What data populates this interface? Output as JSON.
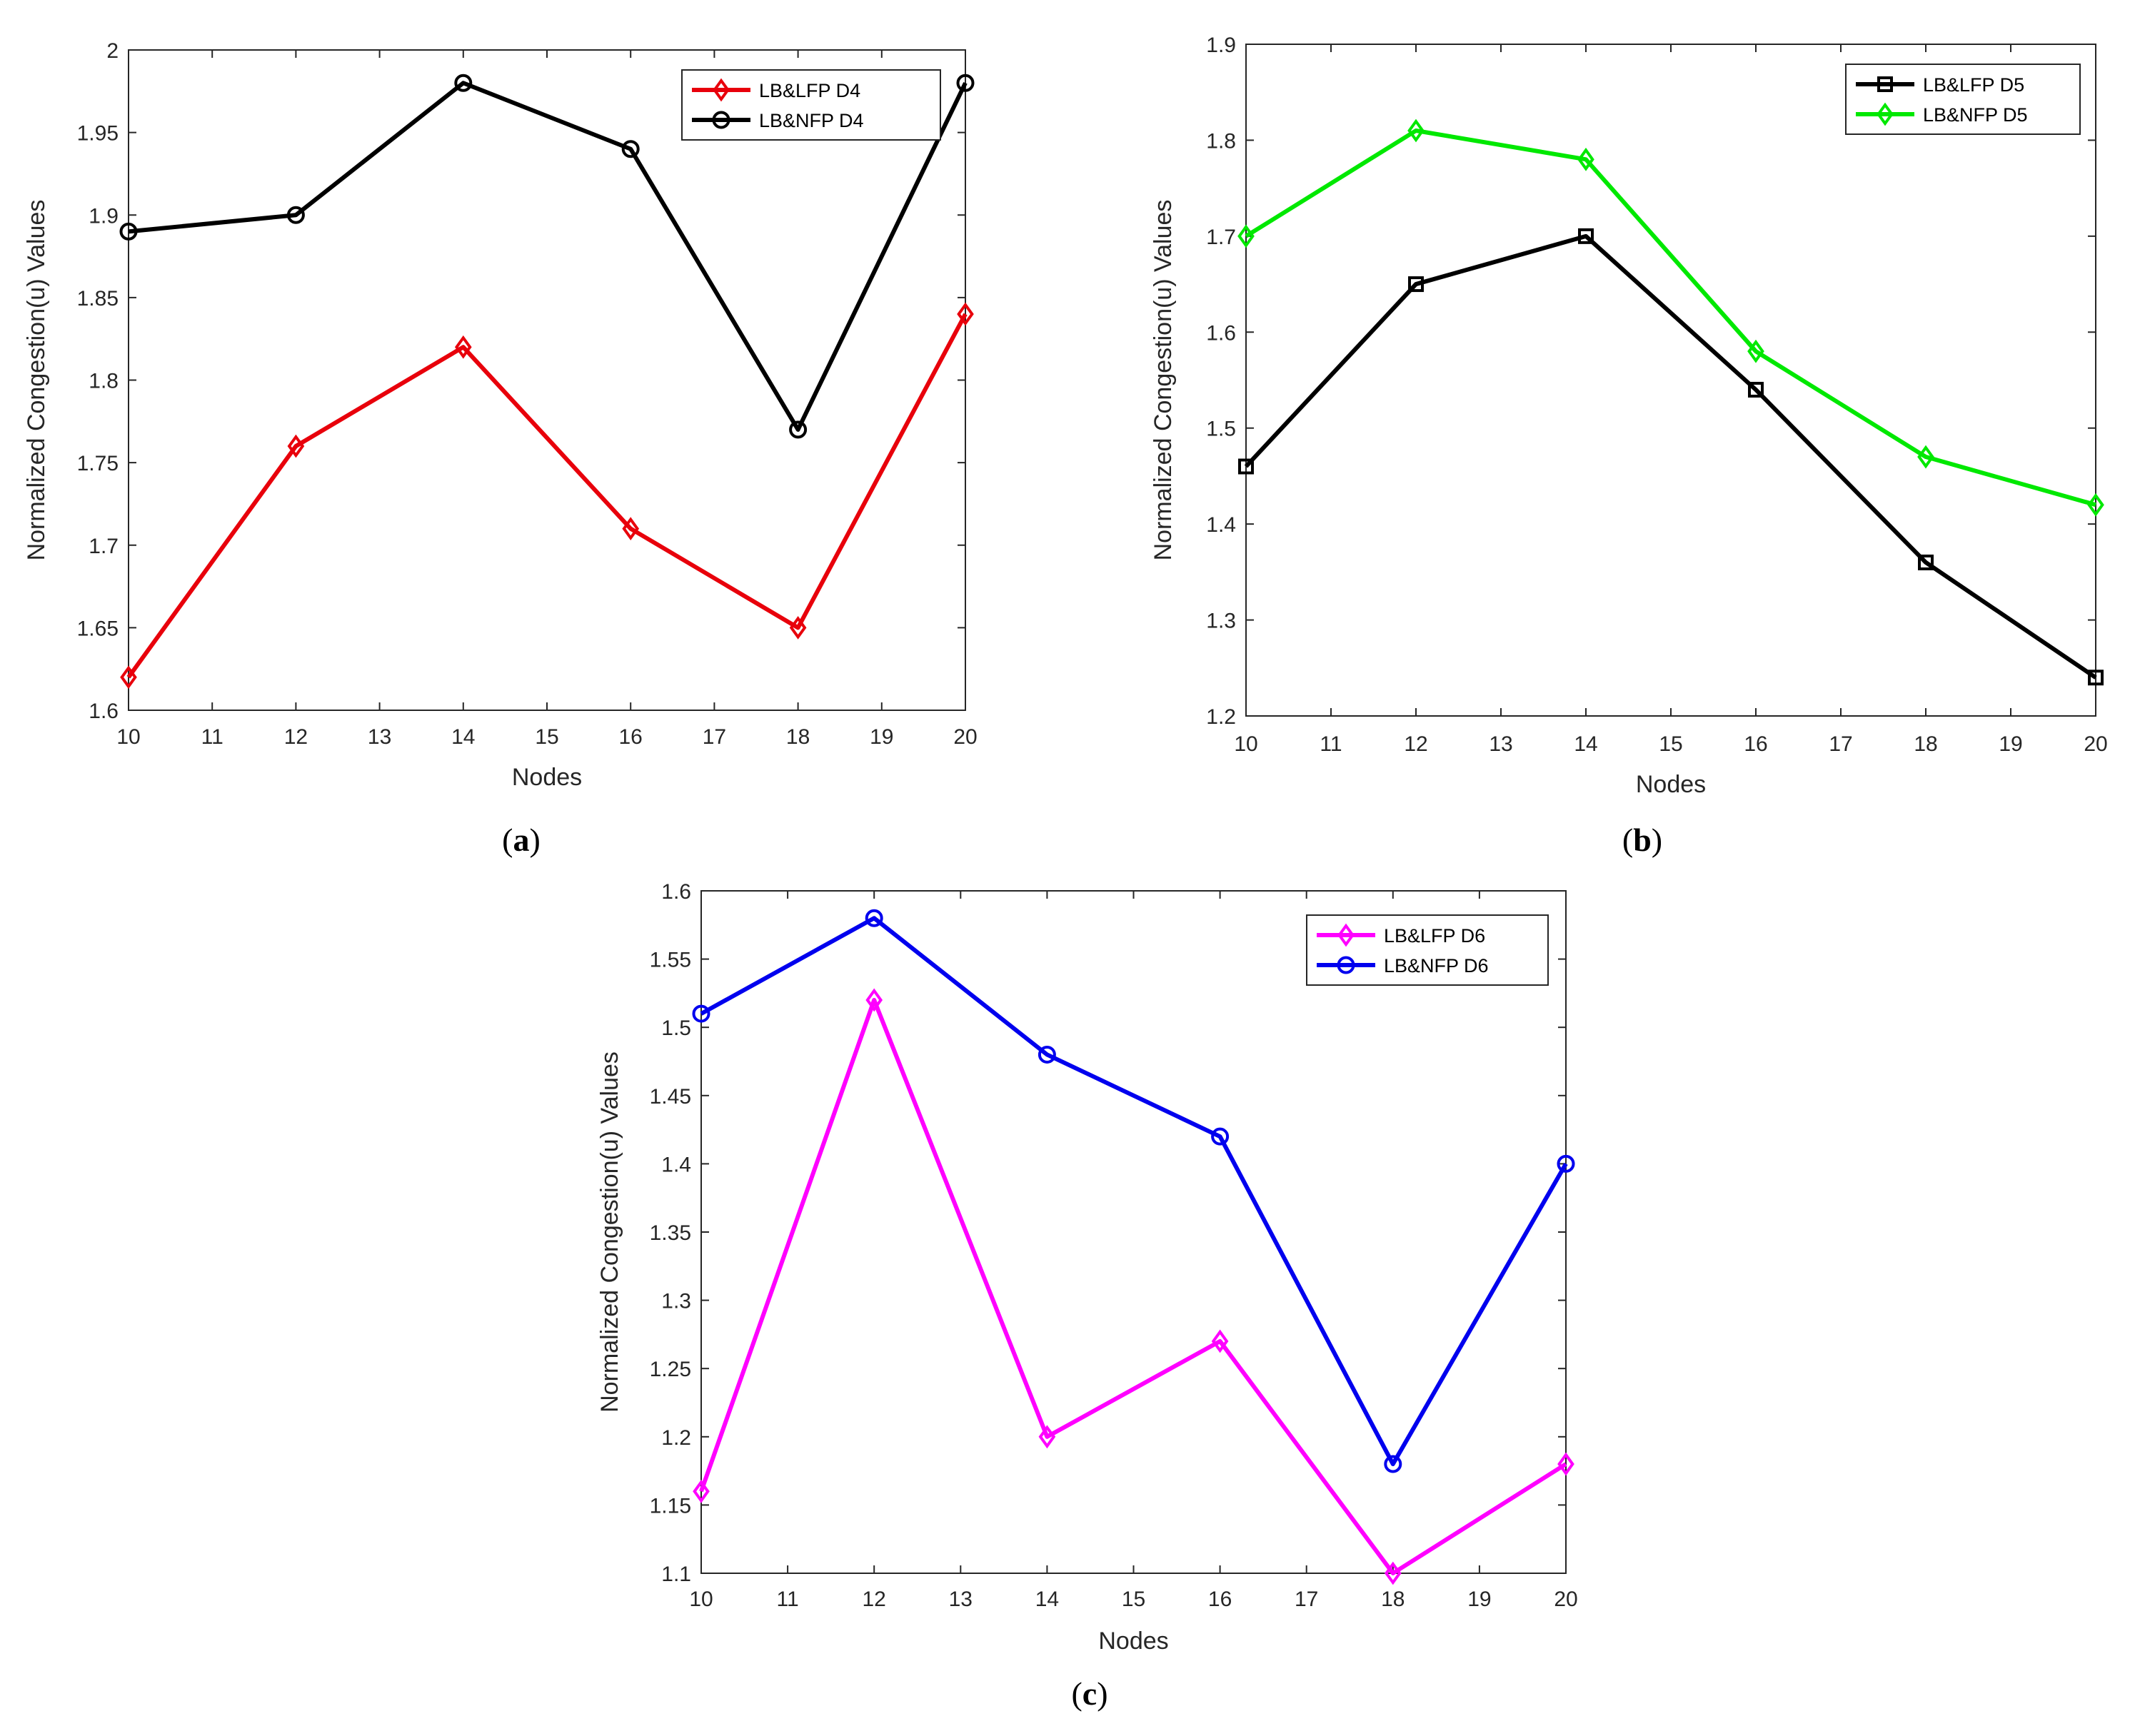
{
  "chart_data": [
    {
      "type": "line",
      "caption_open": "(",
      "caption_letter": "a",
      "caption_close": ")",
      "xlabel": "Nodes",
      "ylabel": "Normalized Congestion(u) Values",
      "xlim": [
        10,
        20
      ],
      "ylim": [
        1.6,
        2.0
      ],
      "x_ticks": [
        10,
        11,
        12,
        13,
        14,
        15,
        16,
        17,
        18,
        19,
        20
      ],
      "y_ticks": [
        1.6,
        1.65,
        1.7,
        1.75,
        1.8,
        1.85,
        1.9,
        1.95,
        2.0
      ],
      "y_tick_labels": [
        "1.6",
        "1.65",
        "1.7",
        "1.75",
        "1.8",
        "1.85",
        "1.9",
        "1.95",
        "2"
      ],
      "grid": false,
      "legend_position": "top-right",
      "x": [
        10,
        12,
        14,
        16,
        18,
        20
      ],
      "series": [
        {
          "name": "LB&LFP D4",
          "color": "#e8000b",
          "marker": "diamond",
          "values": [
            1.62,
            1.76,
            1.82,
            1.71,
            1.65,
            1.84
          ]
        },
        {
          "name": "LB&NFP D4",
          "color": "#000000",
          "marker": "circle",
          "values": [
            1.89,
            1.9,
            1.98,
            1.94,
            1.77,
            1.98
          ]
        }
      ]
    },
    {
      "type": "line",
      "caption_open": "(",
      "caption_letter": "b",
      "caption_close": ")",
      "xlabel": "Nodes",
      "ylabel": "Normalized Congestion(u) Values",
      "xlim": [
        10,
        20
      ],
      "ylim": [
        1.2,
        1.9
      ],
      "x_ticks": [
        10,
        11,
        12,
        13,
        14,
        15,
        16,
        17,
        18,
        19,
        20
      ],
      "y_ticks": [
        1.2,
        1.3,
        1.4,
        1.5,
        1.6,
        1.7,
        1.8,
        1.9
      ],
      "y_tick_labels": [
        "1.2",
        "1.3",
        "1.4",
        "1.5",
        "1.6",
        "1.7",
        "1.8",
        "1.9"
      ],
      "grid": false,
      "legend_position": "top-right",
      "x": [
        10,
        12,
        14,
        16,
        18,
        20
      ],
      "series": [
        {
          "name": "LB&LFP D5",
          "color": "#000000",
          "marker": "square",
          "values": [
            1.46,
            1.65,
            1.7,
            1.54,
            1.36,
            1.24
          ]
        },
        {
          "name": "LB&NFP D5",
          "color": "#00e800",
          "marker": "diamond",
          "values": [
            1.7,
            1.81,
            1.78,
            1.58,
            1.47,
            1.42
          ]
        }
      ]
    },
    {
      "type": "line",
      "caption_open": "(",
      "caption_letter": "c",
      "caption_close": ")",
      "xlabel": "Nodes",
      "ylabel": "Normalized Congestion(u) Values",
      "xlim": [
        10,
        20
      ],
      "ylim": [
        1.1,
        1.6
      ],
      "x_ticks": [
        10,
        11,
        12,
        13,
        14,
        15,
        16,
        17,
        18,
        19,
        20
      ],
      "y_ticks": [
        1.1,
        1.15,
        1.2,
        1.25,
        1.3,
        1.35,
        1.4,
        1.45,
        1.5,
        1.55,
        1.6
      ],
      "y_tick_labels": [
        "1.1",
        "1.15",
        "1.2",
        "1.25",
        "1.3",
        "1.35",
        "1.4",
        "1.45",
        "1.5",
        "1.55",
        "1.6"
      ],
      "grid": false,
      "legend_position": "top-right",
      "x": [
        10,
        12,
        14,
        16,
        18,
        20
      ],
      "series": [
        {
          "name": "LB&LFP D6",
          "color": "#ff00ff",
          "marker": "diamond",
          "values": [
            1.16,
            1.52,
            1.2,
            1.27,
            1.1,
            1.18
          ]
        },
        {
          "name": "LB&NFP D6",
          "color": "#0000ee",
          "marker": "circle",
          "values": [
            1.51,
            1.58,
            1.48,
            1.42,
            1.18,
            1.4
          ]
        }
      ]
    }
  ]
}
